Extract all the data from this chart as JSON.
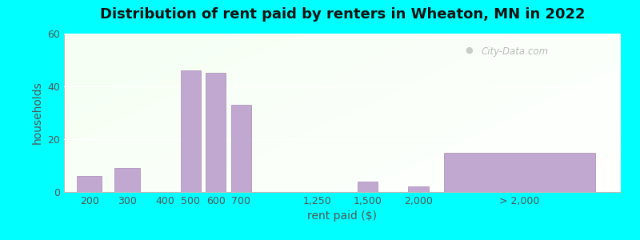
{
  "title": "Distribution of rent paid by renters in Wheaton, MN in 2022",
  "xlabel": "rent paid ($)",
  "ylabel": "households",
  "bar_color": "#c0a8d0",
  "bar_edge_color": "#a888b8",
  "ylim": [
    0,
    60
  ],
  "yticks": [
    0,
    20,
    40,
    60
  ],
  "categories": [
    "200",
    "300",
    "400",
    "500",
    "600",
    "700",
    "1,250",
    "1,500",
    "2,000",
    "> 2,000"
  ],
  "values": [
    6,
    9,
    0,
    46,
    45,
    33,
    0,
    4,
    2,
    15
  ],
  "outer_bg": "#00ffff",
  "title_fontsize": 13,
  "axis_label_fontsize": 10,
  "tick_fontsize": 9,
  "watermark_text": "City-Data.com",
  "x_positions": [
    0.5,
    2.0,
    3.5,
    4.5,
    5.5,
    6.5,
    9.5,
    11.5,
    13.5,
    17.5
  ],
  "bar_widths": [
    1.0,
    1.0,
    0.8,
    0.8,
    0.8,
    0.8,
    0.8,
    0.8,
    0.8,
    6.0
  ]
}
